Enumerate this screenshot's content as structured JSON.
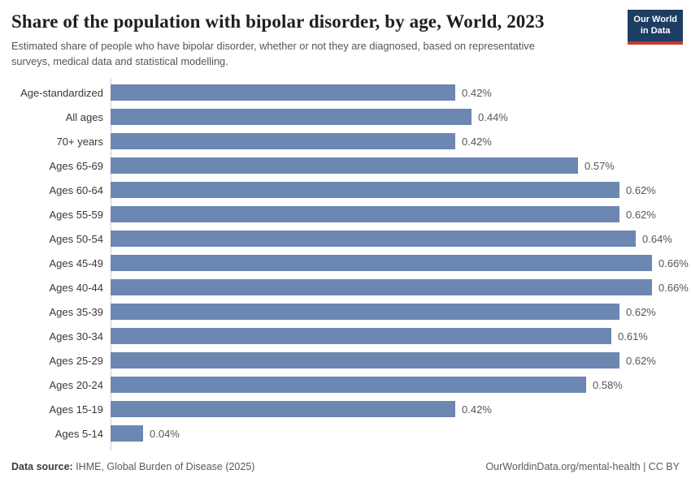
{
  "header": {
    "title": "Share of the population with bipolar disorder, by age, World, 2023",
    "subtitle": "Estimated share of people who have bipolar disorder, whether or not they are diagnosed, based on representative surveys, medical data and statistical modelling.",
    "logo": {
      "line1": "Our World",
      "line2": "in Data",
      "bg_color": "#1d3d63",
      "accent_color": "#c23b33"
    }
  },
  "chart_data": {
    "type": "bar",
    "orientation": "horizontal",
    "title": "Share of the population with bipolar disorder, by age, World, 2023",
    "xlabel": "",
    "ylabel": "",
    "xlim": [
      0,
      0.7
    ],
    "grid": false,
    "legend": "none",
    "bar_color": "#6c87b1",
    "categories": [
      "Age-standardized",
      "All ages",
      "70+ years",
      "Ages 65-69",
      "Ages 60-64",
      "Ages 55-59",
      "Ages 50-54",
      "Ages 45-49",
      "Ages 40-44",
      "Ages 35-39",
      "Ages 30-34",
      "Ages 25-29",
      "Ages 20-24",
      "Ages 15-19",
      "Ages 5-14"
    ],
    "values": [
      0.42,
      0.44,
      0.42,
      0.57,
      0.62,
      0.62,
      0.64,
      0.66,
      0.66,
      0.62,
      0.61,
      0.62,
      0.58,
      0.42,
      0.04
    ],
    "value_labels": [
      "0.42%",
      "0.44%",
      "0.42%",
      "0.57%",
      "0.62%",
      "0.62%",
      "0.64%",
      "0.66%",
      "0.66%",
      "0.62%",
      "0.61%",
      "0.62%",
      "0.58%",
      "0.42%",
      "0.04%"
    ]
  },
  "footer": {
    "datasource_label": "Data source:",
    "datasource_text": " IHME, Global Burden of Disease (2025)",
    "credit": "OurWorldinData.org/mental-health | CC BY"
  }
}
